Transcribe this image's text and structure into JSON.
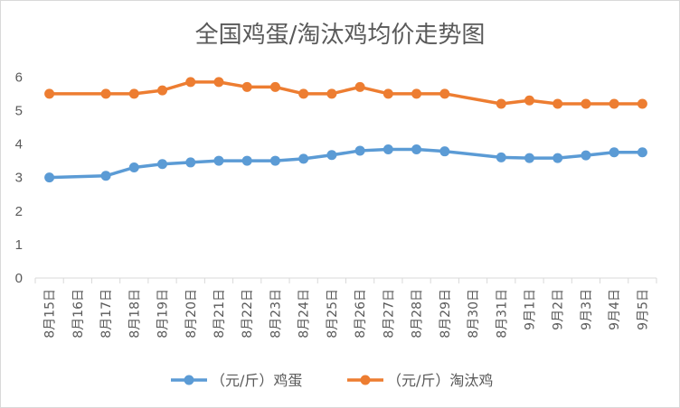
{
  "chart_data": {
    "type": "line",
    "title": "全国鸡蛋/淘汰鸡均价走势图",
    "categories": [
      "8月15日",
      "8月16日",
      "8月17日",
      "8月18日",
      "8月19日",
      "8月20日",
      "8月21日",
      "8月22日",
      "8月23日",
      "8月24日",
      "8月25日",
      "8月26日",
      "8月27日",
      "8月28日",
      "8月29日",
      "8月30日",
      "8月31日",
      "9月1日",
      "9月2日",
      "9月3日",
      "9月4日",
      "9月5日"
    ],
    "series": [
      {
        "name": "（元/斤）鸡蛋",
        "color": "#5b9bd5",
        "values": [
          3.0,
          null,
          3.05,
          3.3,
          3.4,
          3.45,
          3.5,
          3.5,
          3.5,
          3.56,
          3.67,
          3.8,
          3.84,
          3.84,
          3.78,
          null,
          3.6,
          3.58,
          3.58,
          3.66,
          3.75,
          3.75
        ]
      },
      {
        "name": "（元/斤）淘汰鸡",
        "color": "#ed7d31",
        "values": [
          5.5,
          null,
          5.5,
          5.5,
          5.6,
          5.85,
          5.85,
          5.7,
          5.7,
          5.5,
          5.5,
          5.7,
          5.5,
          5.5,
          5.5,
          null,
          5.2,
          5.3,
          5.2,
          5.2,
          5.2,
          5.2
        ]
      }
    ],
    "y_ticks": [
      "0",
      "1",
      "2",
      "3",
      "4",
      "5",
      "6"
    ],
    "ylim": [
      0,
      6.6
    ],
    "grid": false,
    "legend_position": "bottom"
  }
}
